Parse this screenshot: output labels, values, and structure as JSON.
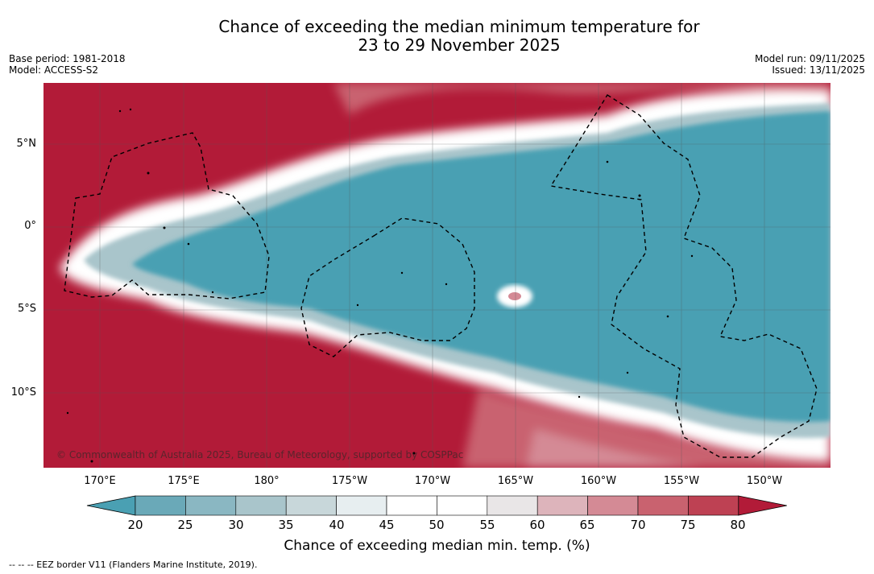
{
  "title_line1": "Chance of exceeding the median minimum temperature for",
  "title_line2": "23 to 29 November 2025",
  "base_period": "Base period: 1981-2018",
  "model": "Model: ACCESS-S2",
  "model_run": "Model run: 09/11/2025",
  "issued": "Issued: 13/11/2025",
  "lat_labels": [
    "5°N",
    "0°",
    "5°S",
    "10°S"
  ],
  "lon_labels": [
    "170°E",
    "175°E",
    "180°",
    "175°W",
    "170°W",
    "165°W",
    "160°W",
    "155°W",
    "150°W"
  ],
  "copyright": "© Commonwealth of Australia 2025, Bureau of Meteorology, supported by COSPPac",
  "colorbar": {
    "ticks": [
      "20",
      "25",
      "30",
      "35",
      "40",
      "45",
      "50",
      "55",
      "60",
      "65",
      "70",
      "75",
      "80"
    ],
    "colors": [
      "#4aa0b3",
      "#6aa9b8",
      "#8ab7c2",
      "#a9c5cb",
      "#c8d7da",
      "#e7eef0",
      "#ffffff",
      "#ffffff",
      "#e9e6e7",
      "#ddb4bb",
      "#d48a95",
      "#c9626f",
      "#be4153",
      "#b21b38"
    ],
    "label": "Chance of exceeding median min. temp. (%)"
  },
  "footer": "-- -- -- EEZ border V11 (Flanders Marine Institute, 2019).",
  "palette": {
    "warm": "#b21b38",
    "cool": "#4aa0b3"
  }
}
